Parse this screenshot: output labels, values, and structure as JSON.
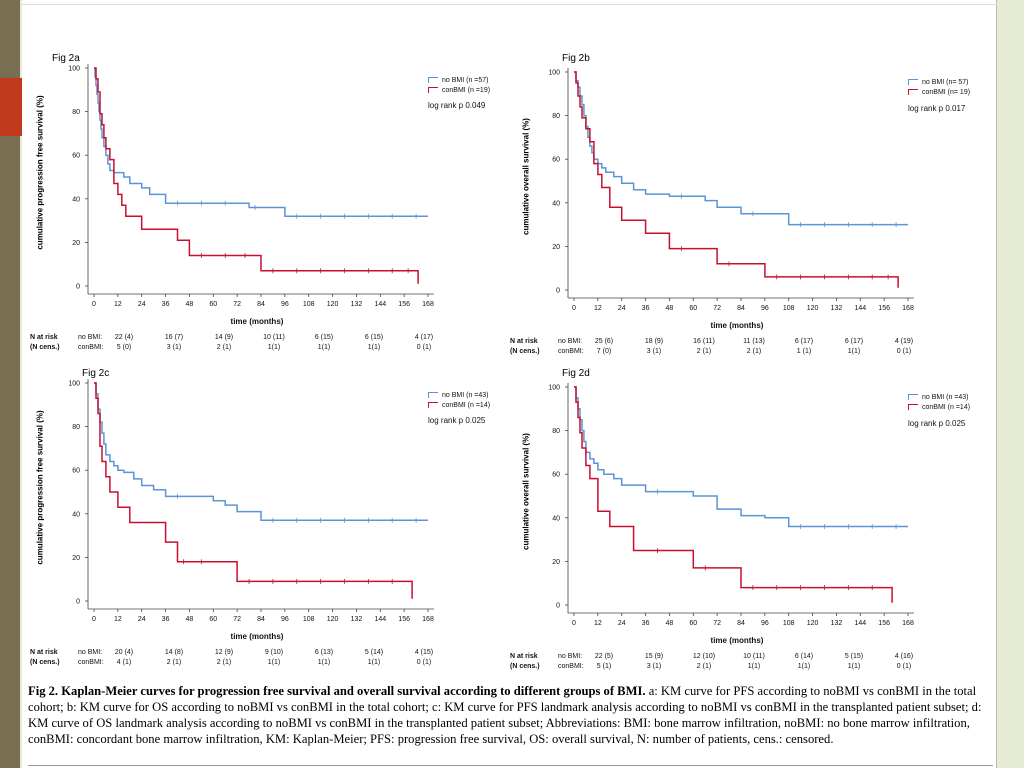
{
  "caption": {
    "label": "Fig 2. Kaplan-Meier curves for progression free survival and overall survival according to different groups of BMI.",
    "text": "a: KM curve for PFS according to noBMI vs conBMI in the total cohort; b: KM curve for OS according to noBMI vs conBMI in the total cohort; c: KM curve for PFS landmark analysis according to noBMI vs conBMI in the transplanted patient subset; d: KM curve of OS landmark analysis according to noBMI vs conBMI in the transplanted patient subset; Abbreviations: BMI: bone marrow infiltration, noBMI: no bone marrow infiltration, conBMI: concordant bone marrow infiltration, KM: Kaplan-Meier; PFS: progression free survival, OS: overall survival, N: number of patients, cens.: censored."
  },
  "colors": {
    "nobmi": "#5b95d6",
    "conbmi": "#c8102e",
    "axis": "#444444",
    "text": "#111111"
  },
  "chart_data": [
    {
      "id": "fig2a",
      "type": "line",
      "title": "Fig 2a",
      "ylabel": "cumulative progression free survival (%)",
      "xlabel": "time (months)",
      "xticks": [
        0,
        12,
        24,
        36,
        48,
        60,
        72,
        84,
        96,
        108,
        120,
        132,
        144,
        156,
        168
      ],
      "yticks": [
        0,
        20,
        40,
        60,
        80,
        100
      ],
      "xlim": [
        0,
        168
      ],
      "ylim": [
        0,
        100
      ],
      "logrank": "log rank p 0.049",
      "series": [
        {
          "name": "no BMI (n =57)",
          "color": "#5b95d6",
          "x": [
            0,
            0.5,
            1,
            1.5,
            2,
            2.5,
            3,
            3.5,
            4,
            5,
            6,
            7,
            8,
            10,
            12,
            15,
            18,
            24,
            28,
            36,
            48,
            60,
            72,
            78,
            84,
            96,
            108,
            120,
            132,
            144,
            156,
            168
          ],
          "y": [
            100,
            96,
            92,
            88,
            84,
            80,
            76,
            72,
            68,
            64,
            60,
            56,
            53,
            52,
            52,
            50,
            47,
            45,
            42,
            38,
            38,
            38,
            38,
            36,
            36,
            32,
            32,
            32,
            32,
            32,
            32,
            32
          ]
        },
        {
          "name": "conBMI (n =19)",
          "color": "#c8102e",
          "x": [
            0,
            1,
            2,
            3,
            4,
            5,
            6,
            8,
            10,
            12,
            14,
            16,
            20,
            24,
            30,
            36,
            42,
            48,
            60,
            72,
            80,
            84,
            96,
            108,
            120,
            132,
            144,
            156,
            160,
            163
          ],
          "y": [
            100,
            95,
            89,
            79,
            74,
            68,
            63,
            58,
            47,
            42,
            37,
            32,
            32,
            26,
            26,
            26,
            21,
            14,
            14,
            14,
            14,
            7,
            7,
            7,
            7,
            7,
            7,
            7,
            7,
            1
          ]
        }
      ],
      "risk_rows": [
        {
          "group": "no BMI:",
          "values": [
            "22 (4)",
            "16 (7)",
            "14 (9)",
            "10 (11)",
            "6 (15)",
            "6 (15)",
            "4 (17)"
          ]
        },
        {
          "group": "conBMI:",
          "values": [
            "5 (0)",
            "3 (1)",
            "2 (1)",
            "1(1)",
            "1(1)",
            "1(1)",
            "0 (1)"
          ]
        }
      ]
    },
    {
      "id": "fig2b",
      "type": "line",
      "title": "Fig 2b",
      "ylabel": "cumulative overall survival (%)",
      "xlabel": "time (months)",
      "xticks": [
        0,
        12,
        24,
        36,
        48,
        60,
        72,
        84,
        96,
        108,
        120,
        132,
        144,
        156,
        168
      ],
      "yticks": [
        0,
        20,
        40,
        60,
        80,
        100
      ],
      "xlim": [
        0,
        168
      ],
      "ylim": [
        0,
        100
      ],
      "logrank": "log rank p 0.017",
      "series": [
        {
          "name": "no BMI (n= 57)",
          "color": "#5b95d6",
          "x": [
            0,
            1,
            2,
            3,
            4,
            5,
            6,
            7,
            8,
            9,
            10,
            12,
            14,
            16,
            20,
            24,
            30,
            36,
            48,
            60,
            66,
            72,
            84,
            96,
            108,
            120,
            132,
            144,
            156,
            168
          ],
          "y": [
            100,
            96,
            93,
            89,
            85,
            80,
            75,
            70,
            66,
            63,
            60,
            58,
            56,
            54,
            52,
            49,
            46,
            44,
            43,
            43,
            41,
            38,
            35,
            35,
            30,
            30,
            30,
            30,
            30,
            30
          ]
        },
        {
          "name": "conBMI (n= 19)",
          "color": "#c8102e",
          "x": [
            0,
            1,
            2,
            3,
            4,
            6,
            8,
            10,
            12,
            14,
            18,
            24,
            30,
            36,
            48,
            60,
            72,
            84,
            96,
            108,
            120,
            132,
            144,
            156,
            160,
            163
          ],
          "y": [
            100,
            95,
            89,
            84,
            79,
            74,
            68,
            58,
            53,
            47,
            38,
            32,
            32,
            26,
            19,
            19,
            12,
            12,
            6,
            6,
            6,
            6,
            6,
            6,
            6,
            1
          ]
        }
      ],
      "risk_rows": [
        {
          "group": "no BMI:",
          "values": [
            "25 (6)",
            "18 (9)",
            "16 (11)",
            "11 (13)",
            "6 (17)",
            "6 (17)",
            "4 (19)"
          ]
        },
        {
          "group": "conBMI:",
          "values": [
            "7 (0)",
            "3 (1)",
            "2 (1)",
            "2 (1)",
            "1 (1)",
            "1(1)",
            "0 (1)"
          ]
        }
      ]
    },
    {
      "id": "fig2c",
      "type": "line",
      "title": "Fig 2c",
      "ylabel": "cumulative progression free survival (%)",
      "xlabel": "time (months)",
      "xticks": [
        0,
        12,
        24,
        36,
        48,
        60,
        72,
        84,
        96,
        108,
        120,
        132,
        144,
        156,
        168
      ],
      "yticks": [
        0,
        20,
        40,
        60,
        80,
        100
      ],
      "xlim": [
        0,
        168
      ],
      "ylim": [
        0,
        100
      ],
      "logrank": "log rank p 0.025",
      "series": [
        {
          "name": "no BMI (n =43)",
          "color": "#5b95d6",
          "x": [
            0,
            1,
            2,
            3,
            4,
            5,
            6,
            8,
            10,
            12,
            15,
            20,
            24,
            30,
            36,
            48,
            60,
            66,
            72,
            84,
            96,
            108,
            120,
            132,
            144,
            156,
            168
          ],
          "y": [
            100,
            95,
            88,
            82,
            77,
            72,
            67,
            64,
            62,
            60,
            59,
            56,
            53,
            51,
            48,
            48,
            46,
            44,
            41,
            37,
            37,
            37,
            37,
            37,
            37,
            37,
            37
          ]
        },
        {
          "name": "conBMI (n =14)",
          "color": "#c8102e",
          "x": [
            0,
            1,
            2,
            3,
            4,
            6,
            8,
            12,
            15,
            18,
            24,
            30,
            36,
            42,
            48,
            60,
            72,
            84,
            96,
            108,
            120,
            132,
            144,
            156,
            160
          ],
          "y": [
            100,
            93,
            86,
            71,
            64,
            57,
            50,
            43,
            43,
            36,
            36,
            36,
            27,
            18,
            18,
            18,
            9,
            9,
            9,
            9,
            9,
            9,
            9,
            9,
            1
          ]
        }
      ],
      "risk_rows": [
        {
          "group": "no BMI:",
          "values": [
            "20 (4)",
            "14 (8)",
            "12 (9)",
            "9 (10)",
            "6 (13)",
            "5 (14)",
            "4 (15)"
          ]
        },
        {
          "group": "conBMI:",
          "values": [
            "4 (1)",
            "2 (1)",
            "2 (1)",
            "1(1)",
            "1(1)",
            "1(1)",
            "0 (1)"
          ]
        }
      ]
    },
    {
      "id": "fig2d",
      "type": "line",
      "title": "Fig 2d",
      "ylabel": "cumulative overall survival (%)",
      "xlabel": "time (months)",
      "xticks": [
        0,
        12,
        24,
        36,
        48,
        60,
        72,
        84,
        96,
        108,
        120,
        132,
        144,
        156,
        168
      ],
      "yticks": [
        0,
        20,
        40,
        60,
        80,
        100
      ],
      "xlim": [
        0,
        168
      ],
      "ylim": [
        0,
        100
      ],
      "logrank": "log rank p 0.025",
      "series": [
        {
          "name": "no BMI (n =43)",
          "color": "#5b95d6",
          "x": [
            0,
            1,
            2,
            3,
            4,
            5,
            6,
            8,
            10,
            12,
            15,
            20,
            24,
            30,
            36,
            48,
            60,
            72,
            84,
            96,
            108,
            120,
            132,
            144,
            156,
            168
          ],
          "y": [
            100,
            95,
            90,
            85,
            80,
            75,
            70,
            67,
            65,
            62,
            60,
            58,
            55,
            55,
            52,
            52,
            50,
            44,
            41,
            40,
            36,
            36,
            36,
            36,
            36,
            36
          ]
        },
        {
          "name": "conBMI (n =14)",
          "color": "#c8102e",
          "x": [
            0,
            1,
            2,
            3,
            4,
            6,
            8,
            12,
            15,
            18,
            24,
            30,
            36,
            48,
            60,
            72,
            84,
            96,
            108,
            120,
            132,
            144,
            156,
            160
          ],
          "y": [
            100,
            93,
            86,
            79,
            72,
            64,
            58,
            43,
            43,
            36,
            36,
            25,
            25,
            25,
            17,
            17,
            8,
            8,
            8,
            8,
            8,
            8,
            8,
            1
          ]
        }
      ],
      "risk_rows": [
        {
          "group": "no BMI:",
          "values": [
            "22 (5)",
            "15 (9)",
            "12 (10)",
            "10 (11)",
            "6 (14)",
            "5 (15)",
            "4 (16)"
          ]
        },
        {
          "group": "conBMI:",
          "values": [
            "5 (1)",
            "3 (1)",
            "2 (1)",
            "1(1)",
            "1(1)",
            "1(1)",
            "0 (1)"
          ]
        }
      ]
    }
  ],
  "risk_header": {
    "n_at_risk": "N at risk",
    "n_cens": "(N cens.)"
  }
}
